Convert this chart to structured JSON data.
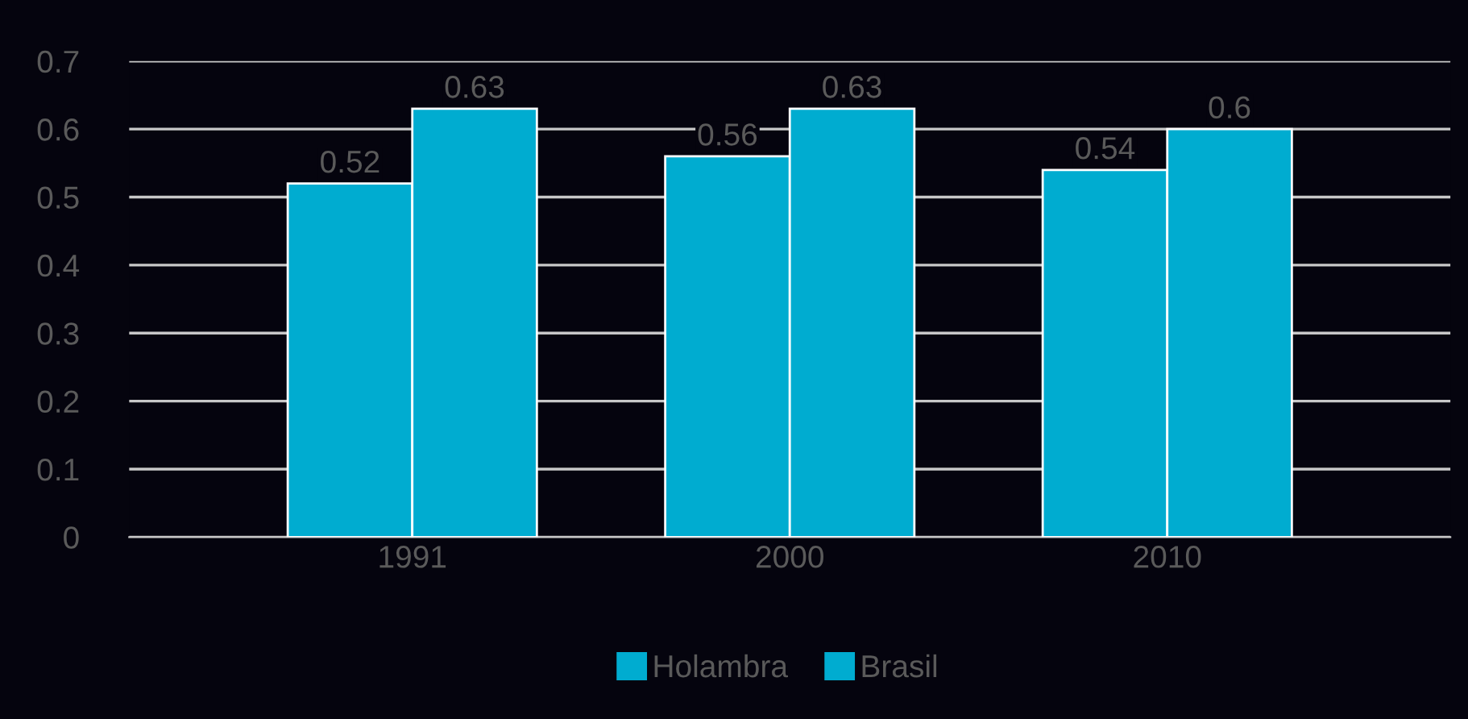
{
  "chart_data": {
    "type": "bar",
    "categories": [
      "1991",
      "2000",
      "2010"
    ],
    "series": [
      {
        "name": "Holambra",
        "color": "#00acd0",
        "values": [
          0.52,
          0.56,
          0.54
        ]
      },
      {
        "name": "Brasil",
        "color": "#00acd0",
        "values": [
          0.63,
          0.63,
          0.6
        ]
      }
    ],
    "ylim": [
      0,
      0.7
    ],
    "yticks": [
      0,
      0.1,
      0.2,
      0.3,
      0.4,
      0.5,
      0.6,
      0.7
    ],
    "grid": "y",
    "legend": "bottom",
    "data_labels": true
  }
}
